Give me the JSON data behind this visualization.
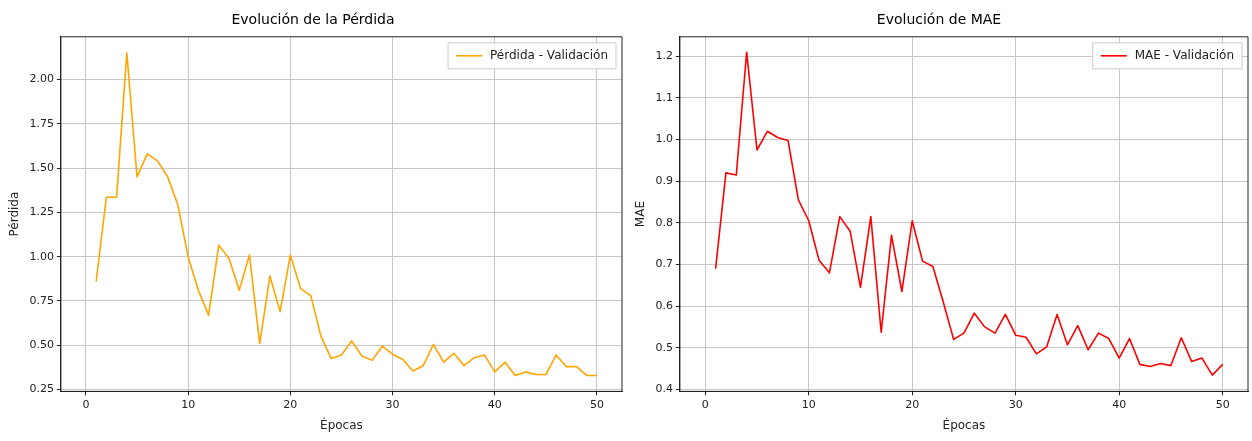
{
  "chart_data": [
    {
      "type": "line",
      "title": "Evolución de la Pérdida",
      "xlabel": "Épocas",
      "ylabel": "Pérdida",
      "x": [
        1,
        2,
        3,
        4,
        5,
        6,
        7,
        8,
        9,
        10,
        11,
        12,
        13,
        14,
        15,
        16,
        17,
        18,
        19,
        20,
        21,
        22,
        23,
        24,
        25,
        26,
        27,
        28,
        29,
        30,
        31,
        32,
        33,
        34,
        35,
        36,
        37,
        38,
        39,
        40,
        41,
        42,
        43,
        44,
        45,
        46,
        47,
        48,
        49,
        50
      ],
      "series": [
        {
          "name": "Pérdida - Validación",
          "color": "#ffa500",
          "values": [
            0.86,
            1.335,
            1.335,
            2.15,
            1.45,
            1.58,
            1.54,
            1.45,
            1.29,
            1.0,
            0.81,
            0.67,
            1.065,
            0.99,
            0.81,
            1.01,
            0.51,
            0.89,
            0.69,
            1.01,
            0.82,
            0.78,
            0.55,
            0.425,
            0.445,
            0.525,
            0.44,
            0.415,
            0.495,
            0.45,
            0.42,
            0.355,
            0.385,
            0.505,
            0.405,
            0.455,
            0.385,
            0.43,
            0.445,
            0.35,
            0.405,
            0.33,
            0.35,
            0.335,
            0.335,
            0.445,
            0.38,
            0.38,
            0.33,
            0.33
          ]
        }
      ],
      "xlim": [
        -2.45,
        52.45
      ],
      "xticks": [
        0,
        10,
        20,
        30,
        40,
        50
      ],
      "ylim": [
        0.24,
        2.24
      ],
      "yticks": [
        {
          "value": 0.25,
          "label": "0.25"
        },
        {
          "value": 0.5,
          "label": "0.50"
        },
        {
          "value": 0.75,
          "label": "0.75"
        },
        {
          "value": 1,
          "label": "1.00"
        },
        {
          "value": 1.25,
          "label": "1.25"
        },
        {
          "value": 1.5,
          "label": "1.50"
        },
        {
          "value": 1.75,
          "label": "1.75"
        },
        {
          "value": 2,
          "label": "2.00"
        }
      ],
      "grid": true,
      "legend": "top right",
      "marker": "none",
      "line_style": "solid"
    },
    {
      "type": "line",
      "title": "Evolución de MAE",
      "xlabel": "Épocas",
      "ylabel": "MAE",
      "x": [
        1,
        2,
        3,
        4,
        5,
        6,
        7,
        8,
        9,
        10,
        11,
        12,
        13,
        14,
        15,
        16,
        17,
        18,
        19,
        20,
        21,
        22,
        23,
        24,
        25,
        26,
        27,
        28,
        29,
        30,
        31,
        32,
        33,
        34,
        35,
        36,
        37,
        38,
        39,
        40,
        41,
        42,
        43,
        44,
        45,
        46,
        47,
        48,
        49,
        50
      ],
      "series": [
        {
          "name": "MAE - Validación",
          "color": "#ff0000",
          "values": [
            0.69,
            0.92,
            0.915,
            1.21,
            0.975,
            1.02,
            1.005,
            0.998,
            0.855,
            0.805,
            0.71,
            0.68,
            0.815,
            0.78,
            0.645,
            0.815,
            0.537,
            0.77,
            0.635,
            0.805,
            0.708,
            0.695,
            0.61,
            0.52,
            0.535,
            0.583,
            0.55,
            0.535,
            0.58,
            0.53,
            0.525,
            0.485,
            0.502,
            0.58,
            0.507,
            0.553,
            0.495,
            0.535,
            0.522,
            0.475,
            0.522,
            0.46,
            0.455,
            0.462,
            0.457,
            0.524,
            0.467,
            0.475,
            0.434,
            0.46
          ]
        }
      ],
      "xlim": [
        -2.45,
        52.45
      ],
      "xticks": [
        0,
        10,
        20,
        30,
        40,
        50
      ],
      "ylim": [
        0.395,
        1.247
      ],
      "yticks": [
        0.4,
        0.5,
        0.6,
        0.7,
        0.8,
        0.9,
        {
          "value": 1,
          "label": "1.0"
        },
        1.1,
        1.2
      ],
      "grid": true,
      "legend": "top right",
      "marker": "none",
      "line_style": "solid"
    }
  ]
}
